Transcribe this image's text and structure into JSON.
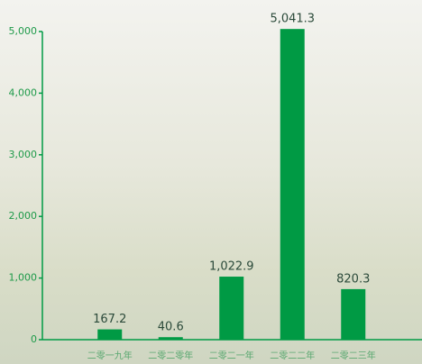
{
  "chart_data": {
    "type": "bar",
    "categories": [
      "二零一九年",
      "二零二零年",
      "二零二一年",
      "二零二二年",
      "二零二三年"
    ],
    "values": [
      167.2,
      40.6,
      1022.9,
      5041.3,
      820.3
    ],
    "value_labels": [
      "167.2",
      "40.6",
      "1,022.9",
      "5,041.3",
      "820.3"
    ],
    "color": "#009a44",
    "ylim": [
      0,
      5000
    ],
    "yticks": [
      0,
      {
        "value": 1000,
        "label": "1,000"
      },
      {
        "value": 2000,
        "label": "2,000"
      },
      {
        "value": 3000,
        "label": "3,000"
      },
      {
        "value": 4000,
        "label": "4,000"
      },
      {
        "value": 5000,
        "label": "5,000"
      }
    ],
    "grid": false
  }
}
